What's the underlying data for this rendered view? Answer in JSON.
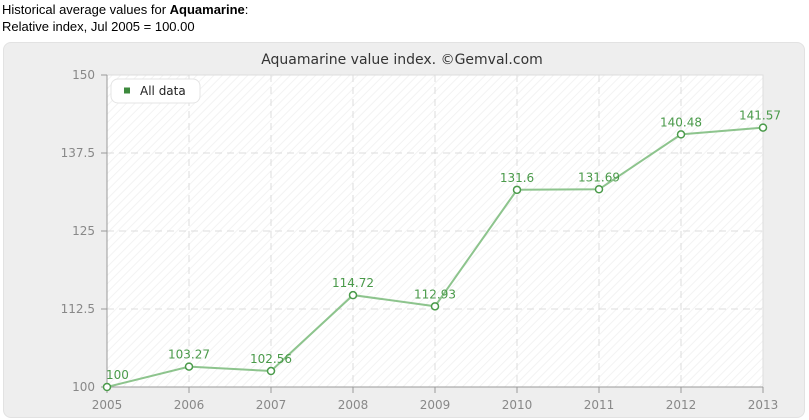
{
  "intro": {
    "line1_prefix": "Historical average values for ",
    "line1_gem": "Aquamarine",
    "line1_suffix": ":",
    "line2": "Relative index, Jul 2005 = 100.00"
  },
  "colors": {
    "series": "#8dc48d",
    "point_stroke": "#4a9a4a",
    "label": "#4a9a4a",
    "legend_marker": "#3d8a3d"
  },
  "chart_data": {
    "type": "line",
    "title": "Aquamarine value index. ©Gemval.com",
    "xlabel": "",
    "ylabel": "",
    "x": [
      "2005",
      "2006",
      "2007",
      "2008",
      "2009",
      "2010",
      "2011",
      "2012",
      "2013"
    ],
    "series": [
      {
        "name": "All data",
        "values": [
          100,
          103.27,
          102.56,
          114.72,
          112.93,
          131.6,
          131.69,
          140.48,
          141.57
        ],
        "labels": [
          "100",
          "103.27",
          "102.56",
          "114.72",
          "112.93",
          "131.6",
          "131.69",
          "140.48",
          "141.57"
        ]
      }
    ],
    "ylim": [
      100,
      150
    ],
    "yticks": [
      100,
      112.5,
      125,
      137.5,
      150
    ],
    "ytick_labels": [
      "100",
      "112.5",
      "125",
      "137.5",
      "150"
    ],
    "grid": true,
    "legend": "top-left"
  }
}
